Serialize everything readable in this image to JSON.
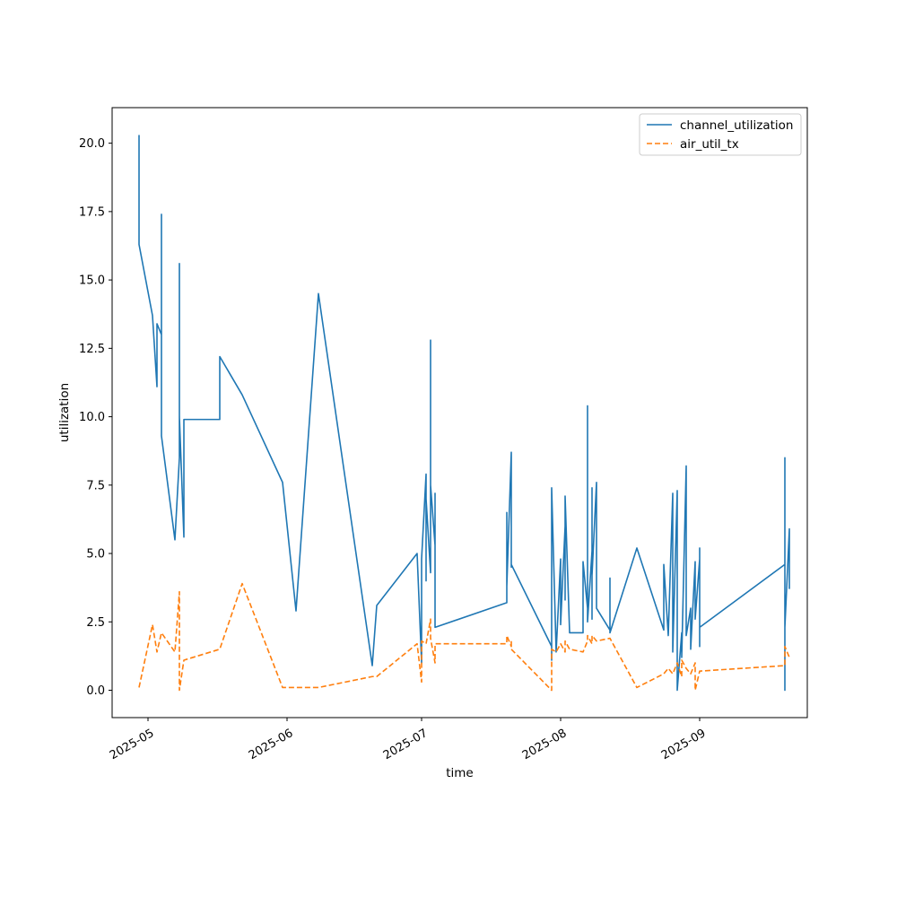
{
  "chart_data": {
    "type": "line",
    "xlabel": "time",
    "ylabel": "utilization",
    "x_axis_kind": "date",
    "xlim": [
      "2025-04-23",
      "2025-09-25"
    ],
    "ylim": [
      -1.0,
      21.3
    ],
    "x_ticks": [
      "2025-05-01",
      "2025-06-01",
      "2025-07-01",
      "2025-08-01",
      "2025-09-01"
    ],
    "x_tick_labels": [
      "2025-05",
      "2025-06",
      "2025-07",
      "2025-08",
      "2025-09"
    ],
    "y_ticks": [
      0.0,
      2.5,
      5.0,
      7.5,
      10.0,
      12.5,
      15.0,
      17.5,
      20.0
    ],
    "y_tick_labels": [
      "0.0",
      "2.5",
      "5.0",
      "7.5",
      "10.0",
      "12.5",
      "15.0",
      "17.5",
      "20.0"
    ],
    "grid": false,
    "legend_position": "top-right",
    "series": [
      {
        "name": "channel_utilization",
        "color": "#1f77b4",
        "style": "solid",
        "points": [
          [
            "2025-04-29",
            20.3
          ],
          [
            "2025-04-29",
            16.3
          ],
          [
            "2025-05-02",
            13.7
          ],
          [
            "2025-05-03",
            11.1
          ],
          [
            "2025-05-03",
            13.4
          ],
          [
            "2025-05-04",
            13.0
          ],
          [
            "2025-05-04",
            17.4
          ],
          [
            "2025-05-04",
            9.3
          ],
          [
            "2025-05-07",
            5.5
          ],
          [
            "2025-05-08",
            8.5
          ],
          [
            "2025-05-08",
            15.6
          ],
          [
            "2025-05-08",
            10.0
          ],
          [
            "2025-05-09",
            5.6
          ],
          [
            "2025-05-09",
            9.9
          ],
          [
            "2025-05-17",
            9.9
          ],
          [
            "2025-05-17",
            12.2
          ],
          [
            "2025-05-22",
            10.8
          ],
          [
            "2025-05-31",
            7.6
          ],
          [
            "2025-06-03",
            2.9
          ],
          [
            "2025-06-08",
            14.5
          ],
          [
            "2025-06-20",
            0.9
          ],
          [
            "2025-06-21",
            3.1
          ],
          [
            "2025-06-30",
            5.0
          ],
          [
            "2025-07-01",
            1.0
          ],
          [
            "2025-07-01",
            4.8
          ],
          [
            "2025-07-02",
            7.9
          ],
          [
            "2025-07-02",
            4.0
          ],
          [
            "2025-07-02",
            7.0
          ],
          [
            "2025-07-03",
            4.3
          ],
          [
            "2025-07-03",
            12.8
          ],
          [
            "2025-07-03",
            5.8
          ],
          [
            "2025-07-03",
            7.5
          ],
          [
            "2025-07-04",
            5.3
          ],
          [
            "2025-07-04",
            7.2
          ],
          [
            "2025-07-04",
            2.3
          ],
          [
            "2025-07-20",
            3.2
          ],
          [
            "2025-07-20",
            6.5
          ],
          [
            "2025-07-20",
            3.8
          ],
          [
            "2025-07-21",
            8.7
          ],
          [
            "2025-07-21",
            4.5
          ],
          [
            "2025-07-21",
            5.3
          ],
          [
            "2025-07-21",
            4.6
          ],
          [
            "2025-07-30",
            1.6
          ],
          [
            "2025-07-30",
            1.1
          ],
          [
            "2025-07-30",
            7.4
          ],
          [
            "2025-07-31",
            1.4
          ],
          [
            "2025-08-01",
            4.8
          ],
          [
            "2025-08-01",
            2.4
          ],
          [
            "2025-08-02",
            6.0
          ],
          [
            "2025-08-02",
            3.3
          ],
          [
            "2025-08-02",
            7.1
          ],
          [
            "2025-08-03",
            2.1
          ],
          [
            "2025-08-06",
            2.1
          ],
          [
            "2025-08-06",
            4.7
          ],
          [
            "2025-08-07",
            3.0
          ],
          [
            "2025-08-07",
            7.1
          ],
          [
            "2025-08-07",
            4.0
          ],
          [
            "2025-08-07",
            7.6
          ],
          [
            "2025-08-07",
            10.4
          ],
          [
            "2025-08-07",
            2.5
          ],
          [
            "2025-08-08",
            5.1
          ],
          [
            "2025-08-08",
            2.6
          ],
          [
            "2025-08-08",
            7.4
          ],
          [
            "2025-08-08",
            4.2
          ],
          [
            "2025-08-09",
            7.6
          ],
          [
            "2025-08-09",
            4.0
          ],
          [
            "2025-08-09",
            7.5
          ],
          [
            "2025-08-09",
            3.0
          ],
          [
            "2025-08-12",
            2.2
          ],
          [
            "2025-08-12",
            4.1
          ],
          [
            "2025-08-12",
            2.1
          ],
          [
            "2025-08-18",
            5.2
          ],
          [
            "2025-08-24",
            2.2
          ],
          [
            "2025-08-24",
            4.6
          ],
          [
            "2025-08-25",
            2.0
          ],
          [
            "2025-08-26",
            7.2
          ],
          [
            "2025-08-26",
            1.4
          ],
          [
            "2025-08-27",
            7.3
          ],
          [
            "2025-08-27",
            0.0
          ],
          [
            "2025-08-28",
            2.1
          ],
          [
            "2025-08-28",
            1.2
          ],
          [
            "2025-08-29",
            8.2
          ],
          [
            "2025-08-29",
            2.0
          ],
          [
            "2025-08-30",
            3.0
          ],
          [
            "2025-08-30",
            1.5
          ],
          [
            "2025-08-31",
            4.7
          ],
          [
            "2025-08-31",
            2.6
          ],
          [
            "2025-09-01",
            4.8
          ],
          [
            "2025-09-01",
            1.6
          ],
          [
            "2025-09-01",
            5.2
          ],
          [
            "2025-09-01",
            2.3
          ],
          [
            "2025-09-20",
            4.6
          ],
          [
            "2025-09-20",
            7.5
          ],
          [
            "2025-09-20",
            0.0
          ],
          [
            "2025-09-20",
            8.5
          ],
          [
            "2025-09-20",
            2.3
          ],
          [
            "2025-09-21",
            5.9
          ],
          [
            "2025-09-21",
            3.7
          ]
        ]
      },
      {
        "name": "air_util_tx",
        "color": "#ff7f0e",
        "style": "dashed",
        "points": [
          [
            "2025-04-29",
            0.1
          ],
          [
            "2025-05-02",
            2.4
          ],
          [
            "2025-05-03",
            1.4
          ],
          [
            "2025-05-04",
            2.1
          ],
          [
            "2025-05-07",
            1.4
          ],
          [
            "2025-05-08",
            3.6
          ],
          [
            "2025-05-08",
            0.0
          ],
          [
            "2025-05-09",
            1.1
          ],
          [
            "2025-05-17",
            1.5
          ],
          [
            "2025-05-22",
            3.9
          ],
          [
            "2025-05-31",
            0.1
          ],
          [
            "2025-06-08",
            0.1
          ],
          [
            "2025-06-20",
            0.5
          ],
          [
            "2025-06-21",
            0.5
          ],
          [
            "2025-06-30",
            1.7
          ],
          [
            "2025-07-01",
            0.3
          ],
          [
            "2025-07-01",
            1.8
          ],
          [
            "2025-07-02",
            1.7
          ],
          [
            "2025-07-03",
            2.6
          ],
          [
            "2025-07-03",
            1.9
          ],
          [
            "2025-07-04",
            1.0
          ],
          [
            "2025-07-04",
            1.7
          ],
          [
            "2025-07-20",
            1.7
          ],
          [
            "2025-07-20",
            2.0
          ],
          [
            "2025-07-21",
            1.6
          ],
          [
            "2025-07-21",
            1.8
          ],
          [
            "2025-07-21",
            1.5
          ],
          [
            "2025-07-30",
            0.0
          ],
          [
            "2025-07-30",
            1.5
          ],
          [
            "2025-07-31",
            1.4
          ],
          [
            "2025-08-01",
            1.7
          ],
          [
            "2025-08-02",
            1.4
          ],
          [
            "2025-08-02",
            1.8
          ],
          [
            "2025-08-03",
            1.5
          ],
          [
            "2025-08-06",
            1.4
          ],
          [
            "2025-08-07",
            1.8
          ],
          [
            "2025-08-07",
            2.0
          ],
          [
            "2025-08-08",
            1.7
          ],
          [
            "2025-08-08",
            2.0
          ],
          [
            "2025-08-09",
            1.8
          ],
          [
            "2025-08-12",
            1.9
          ],
          [
            "2025-08-12",
            1.9
          ],
          [
            "2025-08-18",
            0.1
          ],
          [
            "2025-08-24",
            0.6
          ],
          [
            "2025-08-25",
            0.8
          ],
          [
            "2025-08-26",
            0.6
          ],
          [
            "2025-08-27",
            1.0
          ],
          [
            "2025-08-28",
            0.5
          ],
          [
            "2025-08-28",
            1.1
          ],
          [
            "2025-08-29",
            0.8
          ],
          [
            "2025-08-30",
            0.6
          ],
          [
            "2025-08-31",
            1.0
          ],
          [
            "2025-08-31",
            0.0
          ],
          [
            "2025-09-01",
            0.7
          ],
          [
            "2025-09-20",
            0.9
          ],
          [
            "2025-09-20",
            1.6
          ],
          [
            "2025-09-21",
            1.2
          ]
        ]
      }
    ]
  }
}
